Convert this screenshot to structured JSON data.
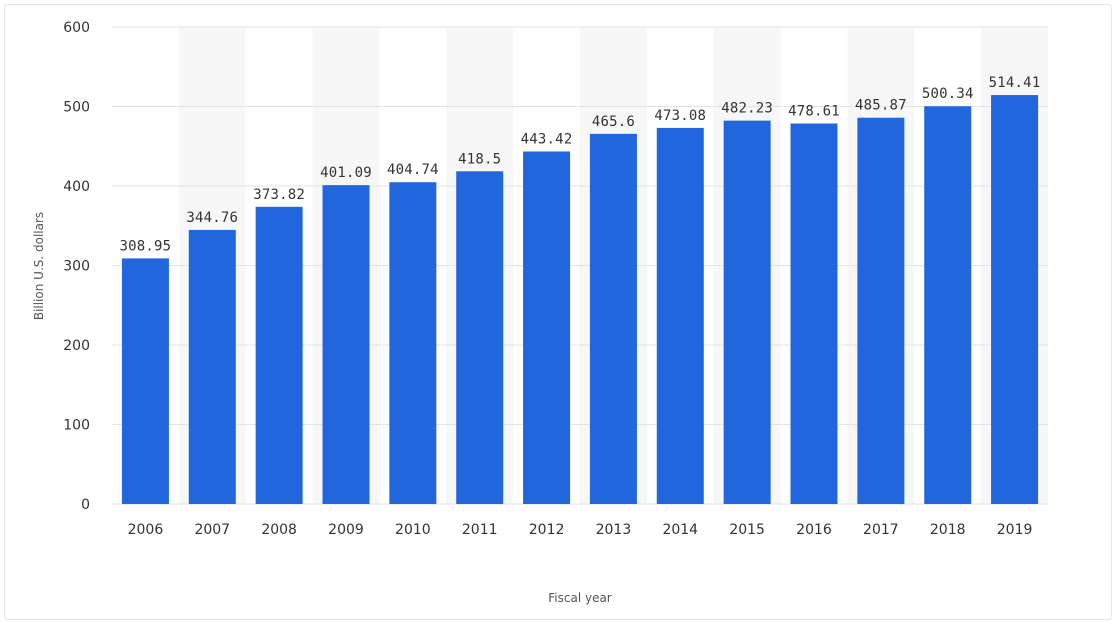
{
  "chart_data": {
    "type": "bar",
    "categories": [
      "2006",
      "2007",
      "2008",
      "2009",
      "2010",
      "2011",
      "2012",
      "2013",
      "2014",
      "2015",
      "2016",
      "2017",
      "2018",
      "2019"
    ],
    "values": [
      308.95,
      344.76,
      373.82,
      401.09,
      404.74,
      418.5,
      443.42,
      465.6,
      473.08,
      482.23,
      478.61,
      485.87,
      500.34,
      514.41
    ],
    "value_labels": [
      "308.95",
      "344.76",
      "373.82",
      "401.09",
      "404.74",
      "418.5",
      "443.42",
      "465.6",
      "473.08",
      "482.23",
      "478.61",
      "485.87",
      "500.34",
      "514.41"
    ],
    "y_ticks": [
      0,
      100,
      200,
      300,
      400,
      500,
      600
    ],
    "xlabel": "Fiscal year",
    "ylabel": "Billion U.S. dollars",
    "ylim": [
      0,
      600
    ],
    "grid": true,
    "legend": "none",
    "colors": {
      "bar": "#2266dd",
      "grid": "#e3e3e3",
      "band": "#f7f7f7",
      "text": "#333333"
    }
  }
}
